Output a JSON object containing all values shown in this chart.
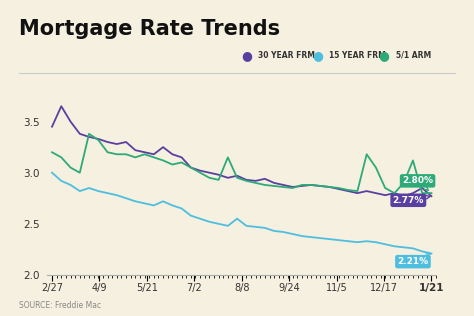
{
  "title": "Mortgage Rate Trends",
  "background_color": "#f5f0df",
  "source_text": "SOURCE: Freddie Mac",
  "x_labels": [
    "2/27",
    "4/9",
    "5/21",
    "7/2",
    "8/8",
    "9/24",
    "11/5",
    "12/17",
    "1/21"
  ],
  "ylim": [
    2.0,
    3.7
  ],
  "yticks": [
    2.0,
    2.5,
    3.0,
    3.5
  ],
  "legend_items": [
    "30 YEAR FRM",
    "15 YEAR FRM",
    "5/1 ARM"
  ],
  "legend_colors": [
    "#5b3fa0",
    "#4dbee0",
    "#2daa78"
  ],
  "line_colors": [
    "#5b3fa0",
    "#4dbee0",
    "#2daa78"
  ],
  "end_labels": [
    "2.77%",
    "2.21%",
    "2.80%"
  ],
  "series_30yr": [
    3.45,
    3.65,
    3.5,
    3.38,
    3.35,
    3.33,
    3.3,
    3.28,
    3.3,
    3.22,
    3.2,
    3.18,
    3.25,
    3.18,
    3.15,
    3.05,
    3.02,
    3.0,
    2.98,
    2.95,
    2.97,
    2.93,
    2.92,
    2.94,
    2.9,
    2.88,
    2.86,
    2.87,
    2.88,
    2.87,
    2.86,
    2.84,
    2.82,
    2.8,
    2.82,
    2.8,
    2.78,
    2.8,
    2.77,
    2.8,
    2.85,
    2.77
  ],
  "series_15yr": [
    3.0,
    2.92,
    2.88,
    2.82,
    2.85,
    2.82,
    2.8,
    2.78,
    2.75,
    2.72,
    2.7,
    2.68,
    2.72,
    2.68,
    2.65,
    2.58,
    2.55,
    2.52,
    2.5,
    2.48,
    2.55,
    2.48,
    2.47,
    2.46,
    2.43,
    2.42,
    2.4,
    2.38,
    2.37,
    2.36,
    2.35,
    2.34,
    2.33,
    2.32,
    2.33,
    2.32,
    2.3,
    2.28,
    2.27,
    2.26,
    2.23,
    2.21
  ],
  "series_5arm": [
    3.2,
    3.15,
    3.05,
    3.0,
    3.38,
    3.32,
    3.2,
    3.18,
    3.18,
    3.15,
    3.18,
    3.15,
    3.12,
    3.08,
    3.1,
    3.05,
    3.0,
    2.95,
    2.93,
    3.15,
    2.95,
    2.92,
    2.9,
    2.88,
    2.87,
    2.86,
    2.85,
    2.88,
    2.88,
    2.87,
    2.86,
    2.85,
    2.83,
    2.82,
    3.18,
    3.05,
    2.85,
    2.8,
    2.9,
    3.12,
    2.8,
    2.8
  ]
}
